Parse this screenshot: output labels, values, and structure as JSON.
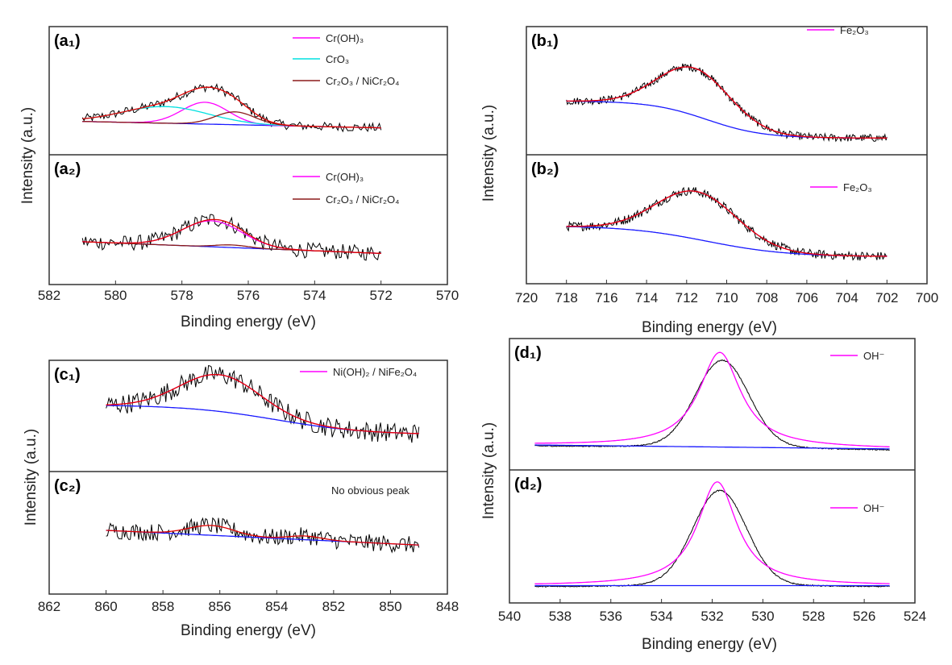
{
  "chart_data": [
    {
      "type": "line",
      "xlabel": "Binding energy (eV)",
      "ylabel": "Intensity (a.u.)",
      "xlim": [
        582,
        570
      ],
      "xticks": [
        582,
        580,
        578,
        576,
        574,
        572,
        570
      ],
      "grid": false,
      "panels": [
        {
          "label": "(a₁)",
          "xrange": [
            581,
            572
          ],
          "background": {
            "type": "linear",
            "start": 0.26,
            "end": 0.21
          },
          "components": [
            {
              "name": "Cr(OH)₃",
              "color": "#ff00ff",
              "shape": "gaussian",
              "center": 577.3,
              "height": 0.17,
              "sigma": 0.7,
              "legend": true
            },
            {
              "name": "CrO₃",
              "color": "#00e0e0",
              "shape": "gaussian",
              "center": 578.5,
              "height": 0.13,
              "sigma": 1.3,
              "legend": true
            },
            {
              "name": "Cr₂O₃ / NiCr₂O₄",
              "color": "#8b1a1a",
              "shape": "gaussian",
              "center": 576.4,
              "height": 0.1,
              "sigma": 0.6,
              "legend": true
            }
          ]
        },
        {
          "label": "(a₂)",
          "xrange": [
            581,
            572
          ],
          "background": {
            "type": "linear",
            "start": 0.33,
            "end": 0.24
          },
          "components": [
            {
              "name": "Cr(OH)₃",
              "color": "#ff00ff",
              "shape": "gaussian",
              "center": 577.1,
              "height": 0.2,
              "sigma": 0.9,
              "legend": true
            },
            {
              "name": "Cr₂O₃ / NiCr₂O₄",
              "color": "#8b1a1a",
              "shape": "gaussian",
              "center": 576.5,
              "height": 0.02,
              "sigma": 0.5,
              "legend": true
            }
          ]
        }
      ]
    },
    {
      "type": "line",
      "xlabel": "Binding energy (eV)",
      "ylabel": "Intensity (a.u.)",
      "xlim": [
        720,
        700
      ],
      "xticks": [
        720,
        718,
        716,
        714,
        712,
        710,
        708,
        706,
        704,
        702,
        700
      ],
      "grid": false,
      "panels": [
        {
          "label": "(b₁)",
          "xrange": [
            718,
            702
          ],
          "background": {
            "type": "sigmoid",
            "start": 0.42,
            "end": 0.13,
            "center": 711,
            "width": 1.4
          },
          "components": [
            {
              "name": "Fe₂O₃",
              "color": "#ff00ff",
              "shape": "gaussian",
              "center": 711.6,
              "height": 0.37,
              "sigma": 1.8,
              "legend": true
            }
          ]
        },
        {
          "label": "(b₂)",
          "xrange": [
            718,
            702
          ],
          "background": {
            "type": "sigmoid",
            "start": 0.45,
            "end": 0.21,
            "center": 711,
            "width": 2
          },
          "components": [
            {
              "name": "Fe₂O₃",
              "color": "#ff00ff",
              "shape": "gaussian",
              "center": 711.5,
              "height": 0.37,
              "sigma": 2.0,
              "legend": true
            }
          ]
        }
      ]
    },
    {
      "type": "line",
      "xlabel": "Binding energy (eV)",
      "ylabel": "Intensity (a.u.)",
      "xlim": [
        862,
        848
      ],
      "xticks": [
        862,
        860,
        858,
        856,
        854,
        852,
        850,
        848
      ],
      "grid": false,
      "panels": [
        {
          "label": "(c₁)",
          "xrange": [
            860,
            849
          ],
          "background": {
            "type": "sigmoid",
            "start": 0.6,
            "end": 0.33,
            "center": 854,
            "width": 1.6
          },
          "components": [
            {
              "name": "Ni(OH)₂ / NiFe₂O₄",
              "color": "#ff00ff",
              "shape": "gaussian",
              "center": 856,
              "height": 0.33,
              "sigma": 1.4,
              "legend": true
            }
          ]
        },
        {
          "label": "(c₂)",
          "annotation": "No obvious peak",
          "xrange": [
            860,
            849
          ],
          "background": {
            "type": "linear",
            "start": 0.52,
            "end": 0.4
          },
          "components": [
            {
              "name": "",
              "color": "#e00000",
              "shape": "gaussian",
              "center": 856.3,
              "height": 0.08,
              "sigma": 0.8,
              "legend": false
            },
            {
              "name": "",
              "color": "#e00000",
              "shape": "gaussian",
              "center": 853,
              "height": 0.03,
              "sigma": 0.6,
              "legend": false
            }
          ]
        }
      ]
    },
    {
      "type": "line",
      "xlabel": "Binding energy (eV)",
      "ylabel": "Intensity (a.u.)",
      "xlim": [
        540,
        524
      ],
      "xticks": [
        540,
        538,
        536,
        534,
        532,
        530,
        528,
        526,
        524
      ],
      "grid": false,
      "panels": [
        {
          "label": "(d₁)",
          "xrange": [
            539,
            525
          ],
          "background": {
            "type": "linear",
            "start": 0.19,
            "end": 0.16
          },
          "components": [
            {
              "name": "OH⁻",
              "color": "#ff00ff",
              "shape": "lorentzian",
              "center": 531.7,
              "height": 0.72,
              "hwhm": 1.0,
              "legend": true
            }
          ]
        },
        {
          "label": "(d₂)",
          "xrange": [
            539,
            525
          ],
          "background": {
            "type": "linear",
            "start": 0.13,
            "end": 0.13
          },
          "components": [
            {
              "name": "OH⁻",
              "color": "#ff00ff",
              "shape": "lorentzian",
              "center": 531.8,
              "height": 0.78,
              "hwhm": 0.95,
              "legend": true
            }
          ]
        }
      ]
    }
  ],
  "colors": {
    "raw": "#000000",
    "envelope": "#e00000",
    "background": "#1a1aff",
    "frame": "#333333"
  }
}
